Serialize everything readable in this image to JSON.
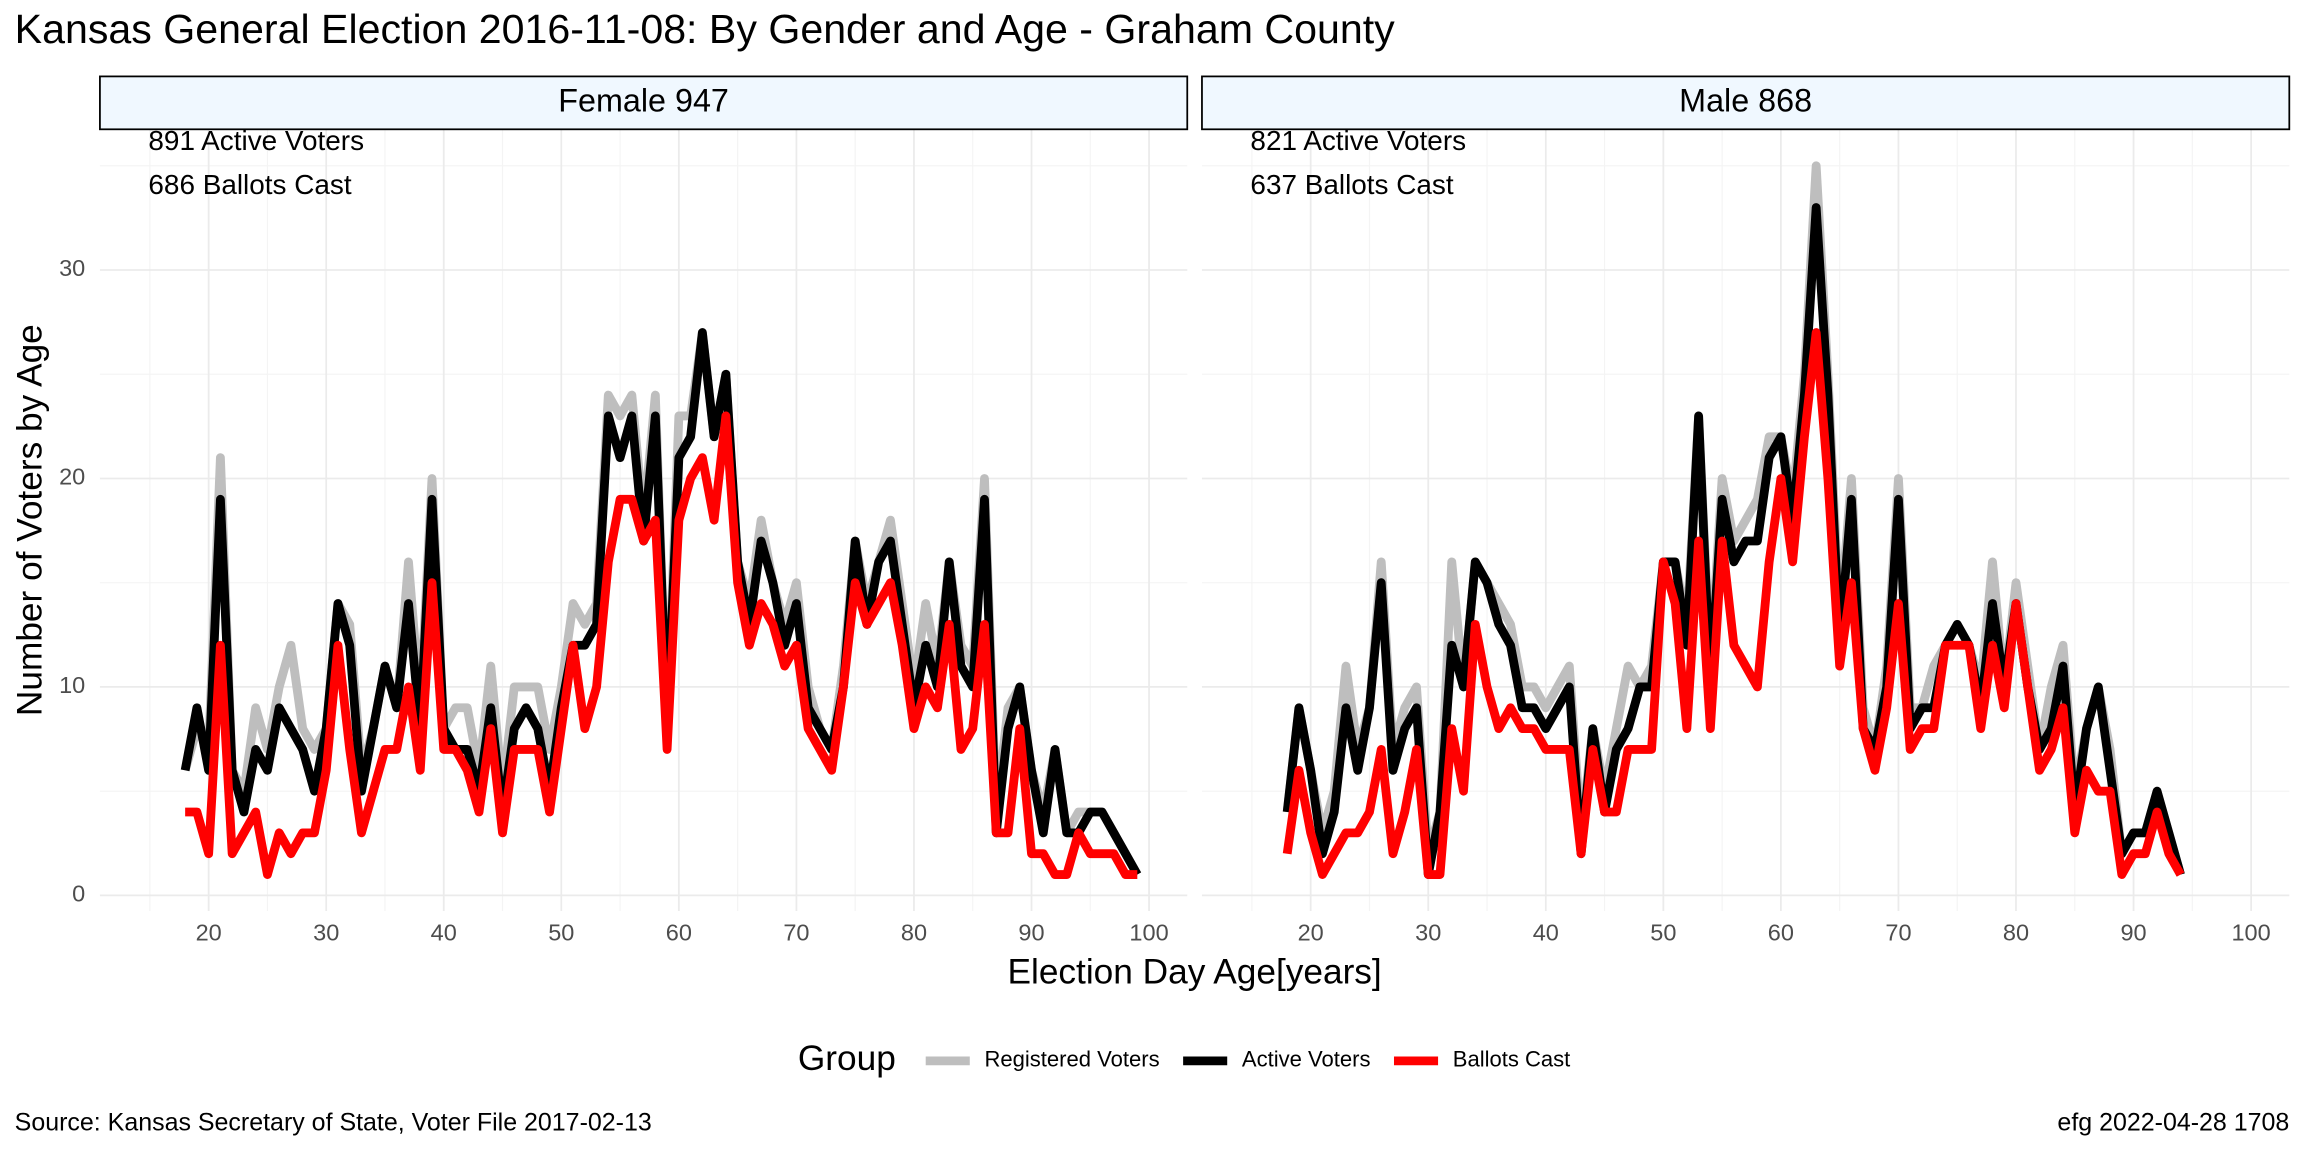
{
  "title": "Kansas General Election 2016-11-08:  By Gender and Age - Graham County",
  "x_label": "Election Day Age[years]",
  "y_label": "Number of Voters by Age",
  "legend_title": "Group",
  "caption_left": "Source:  Kansas Secretary of State, Voter File  2017-02-13",
  "caption_right": "efg 2022-04-28 1708",
  "chart_data": [
    {
      "type": "line",
      "title": "Female 947",
      "annotations": [
        "891 Active Voters",
        "686 Ballots Cast"
      ],
      "x": [
        18,
        19,
        20,
        21,
        22,
        23,
        24,
        25,
        26,
        27,
        28,
        29,
        30,
        31,
        32,
        33,
        34,
        35,
        36,
        37,
        38,
        39,
        40,
        41,
        42,
        43,
        44,
        45,
        46,
        47,
        48,
        49,
        50,
        51,
        52,
        53,
        54,
        55,
        56,
        57,
        58,
        59,
        60,
        61,
        62,
        63,
        64,
        65,
        66,
        67,
        68,
        69,
        70,
        71,
        72,
        73,
        74,
        75,
        76,
        77,
        78,
        79,
        80,
        81,
        82,
        83,
        84,
        85,
        86,
        87,
        88,
        89,
        90,
        91,
        92,
        93,
        94,
        95,
        96,
        97,
        98,
        99
      ],
      "series": [
        {
          "name": "Registered Voters",
          "color": "#bebebe",
          "values": [
            6,
            8,
            7,
            21,
            6,
            5,
            9,
            7,
            10,
            12,
            8,
            7,
            8,
            14,
            13,
            6,
            8,
            11,
            9,
            16,
            9,
            20,
            8,
            9,
            9,
            6,
            11,
            5,
            10,
            10,
            10,
            7,
            10,
            14,
            13,
            14,
            24,
            23,
            24,
            18,
            24,
            8,
            23,
            23,
            27,
            22,
            25,
            16,
            14,
            18,
            15,
            13,
            15,
            10,
            8,
            7,
            11,
            17,
            14,
            16,
            18,
            14,
            10,
            14,
            11,
            16,
            12,
            11,
            20,
            4,
            9,
            10,
            6,
            4,
            7,
            3,
            4,
            4,
            4,
            3,
            2,
            1
          ]
        },
        {
          "name": "Active Voters",
          "color": "#000000",
          "values": [
            6,
            9,
            6,
            19,
            6,
            4,
            7,
            6,
            9,
            8,
            7,
            5,
            8,
            14,
            12,
            5,
            8,
            11,
            9,
            14,
            8,
            19,
            8,
            7,
            7,
            5,
            9,
            4,
            8,
            9,
            8,
            5,
            9,
            12,
            12,
            13,
            23,
            21,
            23,
            17,
            23,
            8,
            21,
            22,
            27,
            22,
            25,
            16,
            13,
            17,
            15,
            12,
            14,
            9,
            8,
            7,
            10,
            17,
            13,
            16,
            17,
            13,
            9,
            12,
            10,
            16,
            11,
            10,
            19,
            3,
            8,
            10,
            6,
            3,
            7,
            3,
            3,
            4,
            4,
            3,
            2,
            1
          ]
        },
        {
          "name": "Ballots Cast",
          "color": "#ff0000",
          "values": [
            4,
            4,
            2,
            12,
            2,
            3,
            4,
            1,
            3,
            2,
            3,
            3,
            6,
            12,
            7,
            3,
            5,
            7,
            7,
            10,
            6,
            15,
            7,
            7,
            6,
            4,
            8,
            3,
            7,
            7,
            7,
            4,
            8,
            12,
            8,
            10,
            16,
            19,
            19,
            17,
            18,
            7,
            18,
            20,
            21,
            18,
            23,
            15,
            12,
            14,
            13,
            11,
            12,
            8,
            7,
            6,
            10,
            15,
            13,
            14,
            15,
            12,
            8,
            10,
            9,
            13,
            7,
            8,
            13,
            3,
            3,
            8,
            2,
            2,
            1,
            1,
            3,
            2,
            2,
            2,
            1,
            1
          ]
        }
      ],
      "xlim": [
        10.75,
        103.25
      ],
      "ylim": [
        -0.75,
        36.75
      ],
      "xticks": [
        20,
        30,
        40,
        50,
        60,
        70,
        80,
        90,
        100
      ],
      "yticks": [
        0,
        10,
        20,
        30
      ],
      "grid": true
    },
    {
      "type": "line",
      "title": "Male 868",
      "annotations": [
        "821 Active Voters",
        "637 Ballots Cast"
      ],
      "x": [
        18,
        19,
        20,
        21,
        22,
        23,
        24,
        25,
        26,
        27,
        28,
        29,
        30,
        31,
        32,
        33,
        34,
        35,
        36,
        37,
        38,
        39,
        40,
        41,
        42,
        43,
        44,
        45,
        46,
        47,
        48,
        49,
        50,
        51,
        52,
        53,
        54,
        55,
        56,
        57,
        58,
        59,
        60,
        61,
        62,
        63,
        64,
        65,
        66,
        67,
        68,
        69,
        70,
        71,
        72,
        73,
        74,
        75,
        76,
        77,
        78,
        79,
        80,
        81,
        82,
        83,
        84,
        85,
        86,
        87,
        88,
        89,
        90,
        91,
        92,
        93,
        94
      ],
      "series": [
        {
          "name": "Registered Voters",
          "color": "#bebebe",
          "values": [
            4,
            9,
            6,
            3,
            5,
            11,
            7,
            9,
            16,
            7,
            9,
            10,
            2,
            4,
            16,
            10,
            16,
            15,
            14,
            13,
            10,
            10,
            9,
            10,
            11,
            3,
            8,
            5,
            8,
            11,
            10,
            11,
            16,
            16,
            13,
            23,
            11,
            20,
            17,
            18,
            19,
            22,
            22,
            19,
            25,
            35,
            25,
            13,
            20,
            9,
            7,
            11,
            20,
            9,
            9,
            11,
            12,
            13,
            12,
            10,
            16,
            10,
            15,
            11,
            7,
            10,
            12,
            5,
            8,
            10,
            7,
            2,
            3,
            3,
            5,
            3,
            1
          ]
        },
        {
          "name": "Active Voters",
          "color": "#000000",
          "values": [
            4,
            9,
            6,
            2,
            4,
            9,
            6,
            9,
            15,
            6,
            8,
            9,
            1,
            4,
            12,
            10,
            16,
            15,
            13,
            12,
            9,
            9,
            8,
            9,
            10,
            2,
            8,
            4,
            7,
            8,
            10,
            10,
            16,
            16,
            12,
            23,
            10,
            19,
            16,
            17,
            17,
            21,
            22,
            18,
            24,
            33,
            24,
            12,
            19,
            8,
            7,
            10,
            19,
            8,
            9,
            9,
            12,
            13,
            12,
            9,
            14,
            10,
            14,
            10,
            7,
            8,
            11,
            4,
            8,
            10,
            6,
            2,
            3,
            3,
            5,
            3,
            1
          ]
        },
        {
          "name": "Ballots Cast",
          "color": "#ff0000",
          "values": [
            2,
            6,
            3,
            1,
            2,
            3,
            3,
            4,
            7,
            2,
            4,
            7,
            1,
            1,
            8,
            5,
            13,
            10,
            8,
            9,
            8,
            8,
            7,
            7,
            7,
            2,
            7,
            4,
            4,
            7,
            7,
            7,
            16,
            14,
            8,
            17,
            8,
            17,
            12,
            11,
            10,
            16,
            20,
            16,
            22,
            27,
            20,
            11,
            15,
            8,
            6,
            9,
            14,
            7,
            8,
            8,
            12,
            12,
            12,
            8,
            12,
            9,
            14,
            10,
            6,
            7,
            9,
            3,
            6,
            5,
            5,
            1,
            2,
            2,
            4,
            2,
            1
          ]
        }
      ],
      "xlim": [
        10.75,
        103.25
      ],
      "ylim": [
        -0.75,
        36.75
      ],
      "xticks": [
        20,
        30,
        40,
        50,
        60,
        70,
        80,
        90,
        100
      ],
      "yticks": [
        0,
        10,
        20,
        30
      ],
      "grid": true
    }
  ]
}
